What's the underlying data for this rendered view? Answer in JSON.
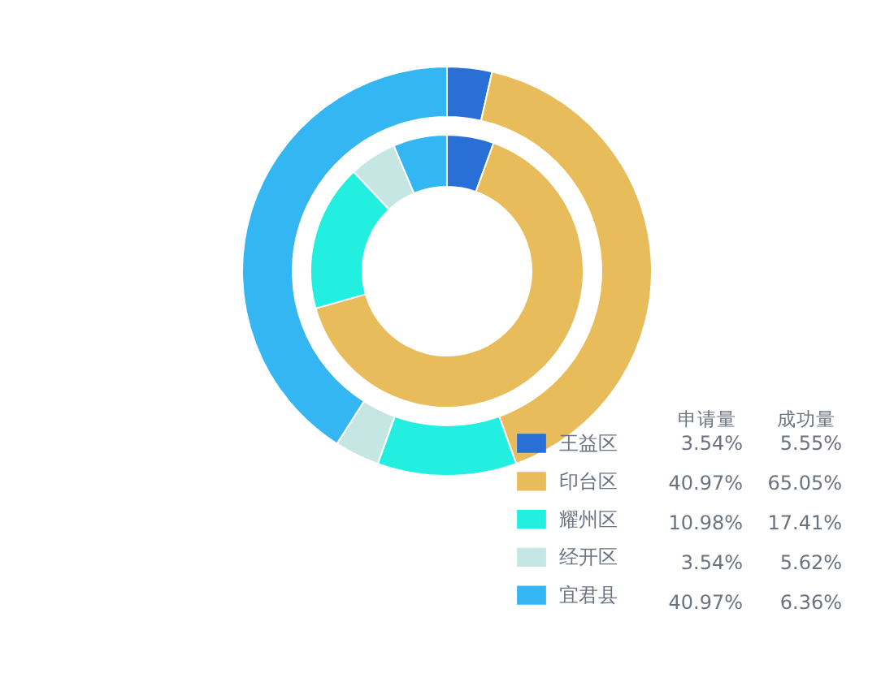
{
  "chart_data": {
    "type": "donut",
    "categories": [
      "王益区",
      "印台区",
      "耀州区",
      "经开区",
      "宜君县"
    ],
    "colors": [
      "#2a6fd6",
      "#e8bc5a",
      "#22efe0",
      "#c5e6e3",
      "#33b6f1"
    ],
    "series": [
      {
        "values": [
          3.54,
          40.97,
          10.98,
          3.54,
          40.97
        ],
        "value_labels": [
          "3.54%",
          "40.97%",
          "10.98%",
          "3.54%",
          "40.97%"
        ]
      },
      {
        "values": [
          5.55,
          65.05,
          17.41,
          5.62,
          6.36
        ],
        "value_labels": [
          "5.55%",
          "65.05%",
          "17.41%",
          "5.62%",
          "6.36%"
        ]
      }
    ],
    "annotations": [
      "申请量",
      "成功量"
    ],
    "legend": "bottom right"
  }
}
